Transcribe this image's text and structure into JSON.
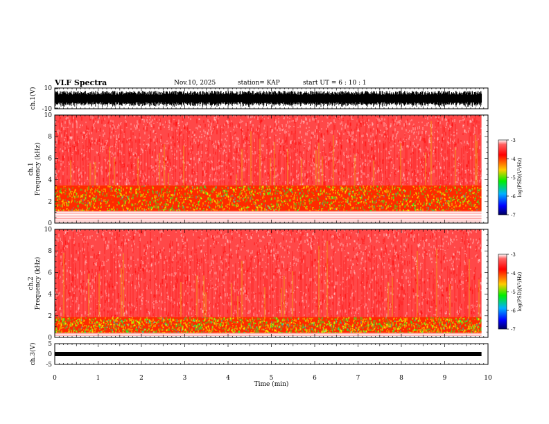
{
  "header": {
    "title": "VLF Spectra",
    "date": "Nov.10, 2025",
    "station": "station= KAP",
    "start": "start  UT =   6  : 10 : 1"
  },
  "chart_data": [
    {
      "type": "line",
      "name": "ch1-waveform",
      "ylabel": "ch.1(V)",
      "ylim": [
        -10,
        10
      ],
      "yticks": [
        "10",
        "-10"
      ],
      "xlim": [
        0,
        10
      ]
    },
    {
      "type": "heatmap",
      "name": "ch1-spectrogram",
      "ylabel_line1": "ch.1",
      "ylabel_line2": "Frequency  (kHz)",
      "ylim": [
        0,
        10
      ],
      "yticks": [
        "0",
        "2",
        "4",
        "6",
        "8",
        "10"
      ],
      "xlim": [
        0,
        10
      ],
      "signal_band_khz": [
        1.1,
        3.5
      ],
      "colorbar": {
        "label": "log(PSD)(V²/Hz)",
        "range": [
          -7,
          -3
        ],
        "ticks": [
          "-3",
          "-4",
          "-5",
          "-6",
          "-7"
        ]
      }
    },
    {
      "type": "heatmap",
      "name": "ch2-spectrogram",
      "ylabel_line1": "ch.2",
      "ylabel_line2": "Frequency  (kHz)",
      "ylim": [
        0,
        10
      ],
      "yticks": [
        "0",
        "2",
        "4",
        "6",
        "8",
        "10"
      ],
      "xlim": [
        0,
        10
      ],
      "signal_band_khz": [
        0.4,
        1.9
      ],
      "colorbar": {
        "label": "log(PSD)(V²/Hz)",
        "range": [
          -7,
          -3
        ],
        "ticks": [
          "-3",
          "-4",
          "-5",
          "-6",
          "-7"
        ]
      }
    },
    {
      "type": "line",
      "name": "ch3-waveform",
      "ylabel": "ch.3(V)",
      "ylim": [
        -5,
        5
      ],
      "yticks": [
        "5",
        "0",
        "-5"
      ],
      "xlim": [
        0,
        10
      ],
      "xlabel": "Time  (min)",
      "xticks": [
        "0",
        "1",
        "2",
        "3",
        "4",
        "5",
        "6",
        "7",
        "8",
        "9",
        "10"
      ],
      "data_end_min": 9.85
    }
  ]
}
